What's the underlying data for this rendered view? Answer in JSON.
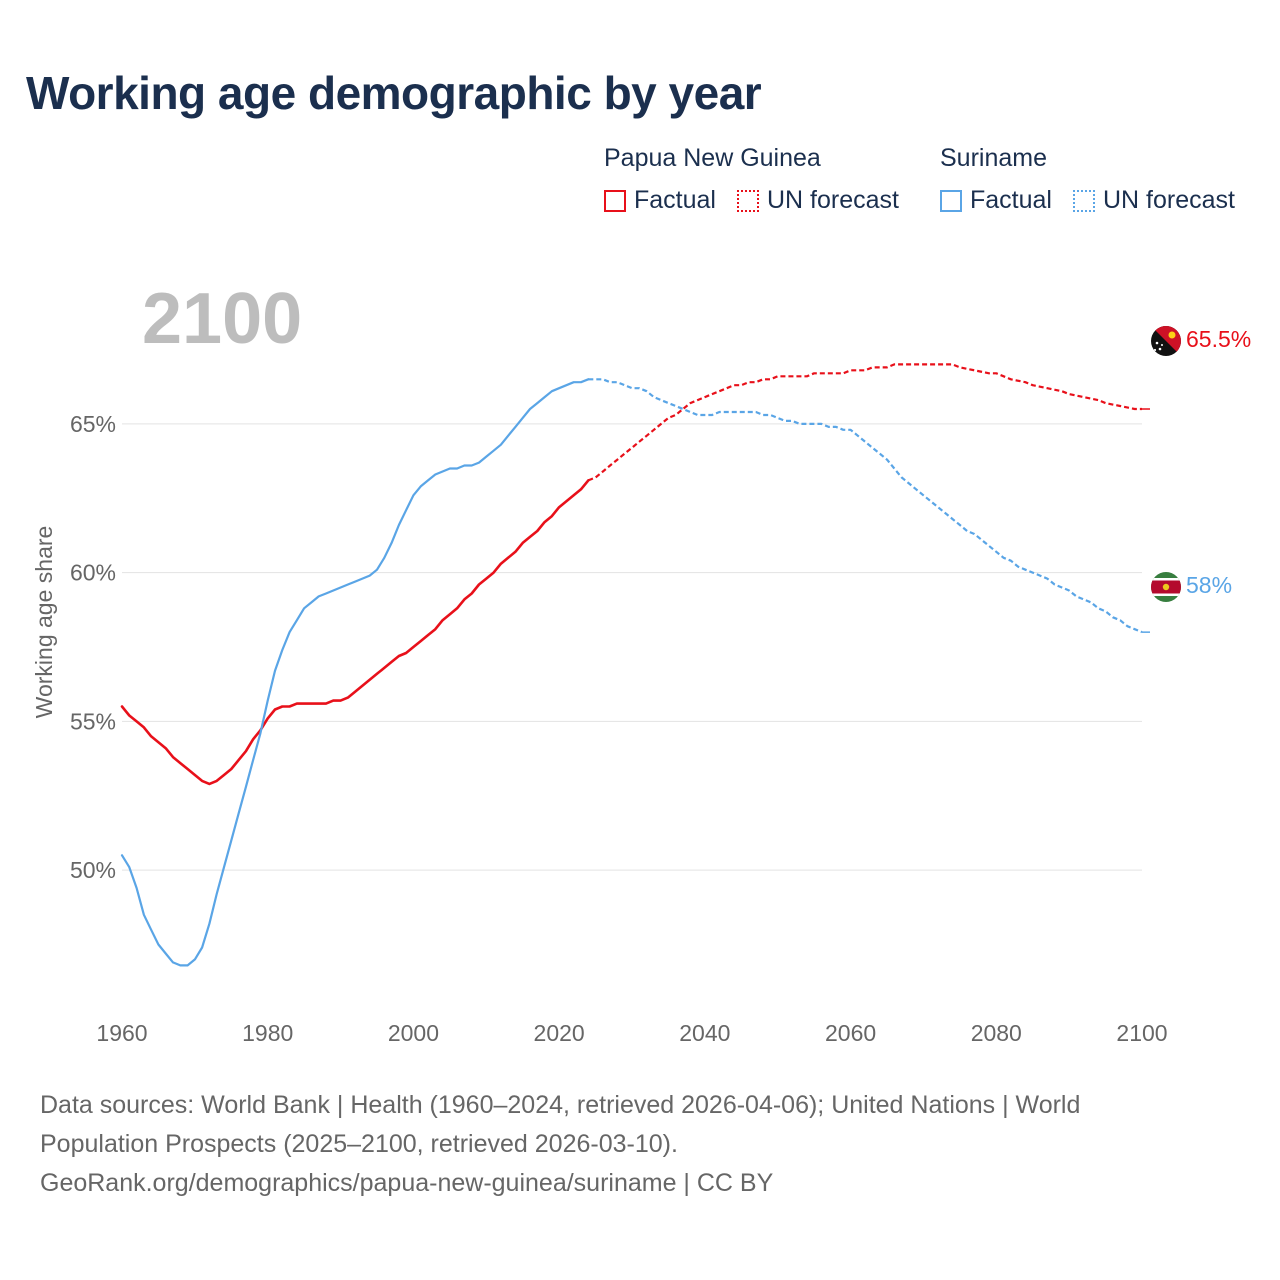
{
  "title": "Working age demographic by year",
  "legend": {
    "groups": [
      {
        "country": "Papua New Guinea",
        "color": "#e8101a",
        "items": [
          "Factual",
          "UN forecast"
        ]
      },
      {
        "country": "Suriname",
        "color": "#5aa5e6",
        "items": [
          "Factual",
          "UN forecast"
        ]
      }
    ]
  },
  "chart_data": {
    "type": "line",
    "title": "Working age demographic by year",
    "xlabel": "",
    "ylabel": "Working age share",
    "xlim": [
      1960,
      2100
    ],
    "ylim": [
      45.3,
      69.5
    ],
    "x_ticks": [
      1960,
      1980,
      2000,
      2020,
      2040,
      2060,
      2080,
      2100
    ],
    "y_ticks": [
      50,
      55,
      60,
      65
    ],
    "y_tick_labels": [
      "50%",
      "55%",
      "60%",
      "65%"
    ],
    "year_watermark": "2100",
    "factual_range": [
      1960,
      2024
    ],
    "forecast_range": [
      2025,
      2100
    ],
    "series": [
      {
        "name": "Papua New Guinea",
        "color": "#e8101a",
        "end_label": "65.5%",
        "flag_icon": "papua-new-guinea-flag-icon",
        "points": [
          [
            1960,
            55.5
          ],
          [
            1961,
            55.2
          ],
          [
            1962,
            55.0
          ],
          [
            1963,
            54.8
          ],
          [
            1964,
            54.5
          ],
          [
            1965,
            54.3
          ],
          [
            1966,
            54.1
          ],
          [
            1967,
            53.8
          ],
          [
            1968,
            53.6
          ],
          [
            1969,
            53.4
          ],
          [
            1970,
            53.2
          ],
          [
            1971,
            53.0
          ],
          [
            1972,
            52.9
          ],
          [
            1973,
            53.0
          ],
          [
            1974,
            53.2
          ],
          [
            1975,
            53.4
          ],
          [
            1976,
            53.7
          ],
          [
            1977,
            54.0
          ],
          [
            1978,
            54.4
          ],
          [
            1979,
            54.7
          ],
          [
            1980,
            55.1
          ],
          [
            1981,
            55.4
          ],
          [
            1982,
            55.5
          ],
          [
            1983,
            55.5
          ],
          [
            1984,
            55.6
          ],
          [
            1985,
            55.6
          ],
          [
            1986,
            55.6
          ],
          [
            1987,
            55.6
          ],
          [
            1988,
            55.6
          ],
          [
            1989,
            55.7
          ],
          [
            1990,
            55.7
          ],
          [
            1991,
            55.8
          ],
          [
            1992,
            56.0
          ],
          [
            1993,
            56.2
          ],
          [
            1994,
            56.4
          ],
          [
            1995,
            56.6
          ],
          [
            1996,
            56.8
          ],
          [
            1997,
            57.0
          ],
          [
            1998,
            57.2
          ],
          [
            1999,
            57.3
          ],
          [
            2000,
            57.5
          ],
          [
            2001,
            57.7
          ],
          [
            2002,
            57.9
          ],
          [
            2003,
            58.1
          ],
          [
            2004,
            58.4
          ],
          [
            2005,
            58.6
          ],
          [
            2006,
            58.8
          ],
          [
            2007,
            59.1
          ],
          [
            2008,
            59.3
          ],
          [
            2009,
            59.6
          ],
          [
            2010,
            59.8
          ],
          [
            2011,
            60.0
          ],
          [
            2012,
            60.3
          ],
          [
            2013,
            60.5
          ],
          [
            2014,
            60.7
          ],
          [
            2015,
            61.0
          ],
          [
            2016,
            61.2
          ],
          [
            2017,
            61.4
          ],
          [
            2018,
            61.7
          ],
          [
            2019,
            61.9
          ],
          [
            2020,
            62.2
          ],
          [
            2021,
            62.4
          ],
          [
            2022,
            62.6
          ],
          [
            2023,
            62.8
          ],
          [
            2024,
            63.1
          ],
          [
            2025,
            63.2
          ],
          [
            2026,
            63.4
          ],
          [
            2027,
            63.6
          ],
          [
            2028,
            63.8
          ],
          [
            2029,
            64.0
          ],
          [
            2030,
            64.2
          ],
          [
            2031,
            64.4
          ],
          [
            2032,
            64.6
          ],
          [
            2033,
            64.8
          ],
          [
            2034,
            65.0
          ],
          [
            2035,
            65.2
          ],
          [
            2036,
            65.3
          ],
          [
            2037,
            65.5
          ],
          [
            2038,
            65.7
          ],
          [
            2039,
            65.8
          ],
          [
            2040,
            65.9
          ],
          [
            2041,
            66.0
          ],
          [
            2042,
            66.1
          ],
          [
            2043,
            66.2
          ],
          [
            2044,
            66.3
          ],
          [
            2045,
            66.3
          ],
          [
            2046,
            66.4
          ],
          [
            2047,
            66.4
          ],
          [
            2048,
            66.5
          ],
          [
            2049,
            66.5
          ],
          [
            2050,
            66.6
          ],
          [
            2052,
            66.6
          ],
          [
            2054,
            66.6
          ],
          [
            2055,
            66.7
          ],
          [
            2057,
            66.7
          ],
          [
            2059,
            66.7
          ],
          [
            2060,
            66.8
          ],
          [
            2062,
            66.8
          ],
          [
            2063,
            66.9
          ],
          [
            2065,
            66.9
          ],
          [
            2066,
            67.0
          ],
          [
            2068,
            67.0
          ],
          [
            2070,
            67.0
          ],
          [
            2072,
            67.0
          ],
          [
            2074,
            67.0
          ],
          [
            2075,
            66.9
          ],
          [
            2077,
            66.8
          ],
          [
            2079,
            66.7
          ],
          [
            2080,
            66.7
          ],
          [
            2082,
            66.5
          ],
          [
            2084,
            66.4
          ],
          [
            2085,
            66.3
          ],
          [
            2087,
            66.2
          ],
          [
            2089,
            66.1
          ],
          [
            2090,
            66.0
          ],
          [
            2092,
            65.9
          ],
          [
            2094,
            65.8
          ],
          [
            2095,
            65.7
          ],
          [
            2097,
            65.6
          ],
          [
            2099,
            65.5
          ],
          [
            2100,
            65.5
          ]
        ]
      },
      {
        "name": "Suriname",
        "color": "#5aa5e6",
        "end_label": "58%",
        "flag_icon": "suriname-flag-icon",
        "points": [
          [
            1960,
            50.5
          ],
          [
            1961,
            50.1
          ],
          [
            1962,
            49.4
          ],
          [
            1963,
            48.5
          ],
          [
            1964,
            48.0
          ],
          [
            1965,
            47.5
          ],
          [
            1966,
            47.2
          ],
          [
            1967,
            46.9
          ],
          [
            1968,
            46.8
          ],
          [
            1969,
            46.8
          ],
          [
            1970,
            47.0
          ],
          [
            1971,
            47.4
          ],
          [
            1972,
            48.2
          ],
          [
            1973,
            49.2
          ],
          [
            1974,
            50.1
          ],
          [
            1975,
            51.0
          ],
          [
            1976,
            51.9
          ],
          [
            1977,
            52.8
          ],
          [
            1978,
            53.7
          ],
          [
            1979,
            54.6
          ],
          [
            1980,
            55.7
          ],
          [
            1981,
            56.7
          ],
          [
            1982,
            57.4
          ],
          [
            1983,
            58.0
          ],
          [
            1984,
            58.4
          ],
          [
            1985,
            58.8
          ],
          [
            1986,
            59.0
          ],
          [
            1987,
            59.2
          ],
          [
            1988,
            59.3
          ],
          [
            1989,
            59.4
          ],
          [
            1990,
            59.5
          ],
          [
            1991,
            59.6
          ],
          [
            1992,
            59.7
          ],
          [
            1993,
            59.8
          ],
          [
            1994,
            59.9
          ],
          [
            1995,
            60.1
          ],
          [
            1996,
            60.5
          ],
          [
            1997,
            61.0
          ],
          [
            1998,
            61.6
          ],
          [
            1999,
            62.1
          ],
          [
            2000,
            62.6
          ],
          [
            2001,
            62.9
          ],
          [
            2002,
            63.1
          ],
          [
            2003,
            63.3
          ],
          [
            2004,
            63.4
          ],
          [
            2005,
            63.5
          ],
          [
            2006,
            63.5
          ],
          [
            2007,
            63.6
          ],
          [
            2008,
            63.6
          ],
          [
            2009,
            63.7
          ],
          [
            2010,
            63.9
          ],
          [
            2011,
            64.1
          ],
          [
            2012,
            64.3
          ],
          [
            2013,
            64.6
          ],
          [
            2014,
            64.9
          ],
          [
            2015,
            65.2
          ],
          [
            2016,
            65.5
          ],
          [
            2017,
            65.7
          ],
          [
            2018,
            65.9
          ],
          [
            2019,
            66.1
          ],
          [
            2020,
            66.2
          ],
          [
            2021,
            66.3
          ],
          [
            2022,
            66.4
          ],
          [
            2023,
            66.4
          ],
          [
            2024,
            66.5
          ],
          [
            2025,
            66.5
          ],
          [
            2026,
            66.5
          ],
          [
            2027,
            66.4
          ],
          [
            2028,
            66.4
          ],
          [
            2029,
            66.3
          ],
          [
            2030,
            66.2
          ],
          [
            2031,
            66.2
          ],
          [
            2032,
            66.1
          ],
          [
            2033,
            65.9
          ],
          [
            2034,
            65.8
          ],
          [
            2035,
            65.7
          ],
          [
            2036,
            65.6
          ],
          [
            2037,
            65.5
          ],
          [
            2038,
            65.4
          ],
          [
            2039,
            65.3
          ],
          [
            2040,
            65.3
          ],
          [
            2041,
            65.3
          ],
          [
            2042,
            65.4
          ],
          [
            2043,
            65.4
          ],
          [
            2044,
            65.4
          ],
          [
            2045,
            65.4
          ],
          [
            2046,
            65.4
          ],
          [
            2047,
            65.4
          ],
          [
            2048,
            65.3
          ],
          [
            2049,
            65.3
          ],
          [
            2050,
            65.2
          ],
          [
            2051,
            65.1
          ],
          [
            2052,
            65.1
          ],
          [
            2053,
            65.0
          ],
          [
            2054,
            65.0
          ],
          [
            2055,
            65.0
          ],
          [
            2056,
            65.0
          ],
          [
            2057,
            64.9
          ],
          [
            2058,
            64.9
          ],
          [
            2059,
            64.8
          ],
          [
            2060,
            64.8
          ],
          [
            2061,
            64.6
          ],
          [
            2062,
            64.4
          ],
          [
            2063,
            64.2
          ],
          [
            2064,
            64.0
          ],
          [
            2065,
            63.8
          ],
          [
            2066,
            63.5
          ],
          [
            2067,
            63.2
          ],
          [
            2068,
            63.0
          ],
          [
            2069,
            62.8
          ],
          [
            2070,
            62.6
          ],
          [
            2071,
            62.4
          ],
          [
            2072,
            62.2
          ],
          [
            2073,
            62.0
          ],
          [
            2074,
            61.8
          ],
          [
            2075,
            61.6
          ],
          [
            2076,
            61.4
          ],
          [
            2077,
            61.3
          ],
          [
            2078,
            61.1
          ],
          [
            2079,
            60.9
          ],
          [
            2080,
            60.7
          ],
          [
            2081,
            60.5
          ],
          [
            2082,
            60.4
          ],
          [
            2083,
            60.2
          ],
          [
            2084,
            60.1
          ],
          [
            2085,
            60.0
          ],
          [
            2086,
            59.9
          ],
          [
            2087,
            59.8
          ],
          [
            2088,
            59.6
          ],
          [
            2089,
            59.5
          ],
          [
            2090,
            59.4
          ],
          [
            2091,
            59.2
          ],
          [
            2092,
            59.1
          ],
          [
            2093,
            59.0
          ],
          [
            2094,
            58.8
          ],
          [
            2095,
            58.7
          ],
          [
            2096,
            58.5
          ],
          [
            2097,
            58.4
          ],
          [
            2098,
            58.2
          ],
          [
            2099,
            58.1
          ],
          [
            2100,
            58.0
          ]
        ]
      }
    ]
  },
  "footer": {
    "line1": "Data sources: World Bank | Health (1960–2024, retrieved 2026-04-06); United Nations | World",
    "line2": "Population Prospects (2025–2100, retrieved 2026-03-10).",
    "line3": "GeoRank.org/demographics/papua-new-guinea/suriname | CC BY"
  }
}
